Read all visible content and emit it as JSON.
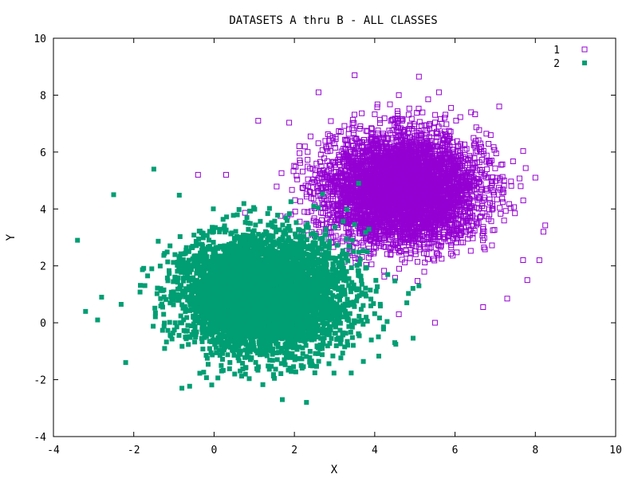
{
  "chart_data": {
    "type": "scatter",
    "title": "DATASETS A thru B - ALL CLASSES",
    "xlabel": "X",
    "ylabel": "Y",
    "xlim": [
      -4,
      10
    ],
    "ylim": [
      -4,
      10
    ],
    "xticks": [
      "-4",
      "-2",
      "0",
      "2",
      "4",
      "6",
      "8",
      "10"
    ],
    "yticks": [
      "-4",
      "-2",
      "0",
      "2",
      "4",
      "6",
      "8",
      "10"
    ],
    "grid": false,
    "legend_position": "top-right",
    "series": [
      {
        "name": "1",
        "marker": "open-square",
        "color": "#9400d3",
        "center": [
          4.7,
          4.7
        ],
        "spread": [
          0.95,
          0.95
        ],
        "samples": [
          [
            3.5,
            8.7
          ],
          [
            5.1,
            8.65
          ],
          [
            5.6,
            8.1
          ],
          [
            2.6,
            8.1
          ],
          [
            4.6,
            8.0
          ],
          [
            7.1,
            7.6
          ],
          [
            8.0,
            5.1
          ],
          [
            8.2,
            3.2
          ],
          [
            8.1,
            2.2
          ],
          [
            7.8,
            1.5
          ],
          [
            7.3,
            0.85
          ],
          [
            6.7,
            0.55
          ],
          [
            5.5,
            0.0
          ],
          [
            4.6,
            0.3
          ],
          [
            0.3,
            5.2
          ],
          [
            -0.4,
            5.2
          ],
          [
            1.1,
            7.1
          ],
          [
            6.4,
            7.4
          ]
        ]
      },
      {
        "name": "2",
        "marker": "filled-square",
        "color": "#009e73",
        "center": [
          1.2,
          1.0
        ],
        "spread": [
          1.0,
          1.0
        ],
        "samples": [
          [
            -3.4,
            2.9
          ],
          [
            -1.5,
            5.4
          ],
          [
            -2.5,
            4.5
          ],
          [
            3.6,
            4.9
          ],
          [
            -3.2,
            0.4
          ],
          [
            -2.9,
            0.1
          ],
          [
            2.3,
            -2.8
          ],
          [
            5.1,
            1.3
          ],
          [
            4.5,
            -0.7
          ],
          [
            -2.2,
            -1.4
          ],
          [
            -0.8,
            -2.3
          ],
          [
            1.7,
            -2.7
          ],
          [
            -2.8,
            0.9
          ],
          [
            4.8,
            0.7
          ]
        ]
      }
    ]
  }
}
